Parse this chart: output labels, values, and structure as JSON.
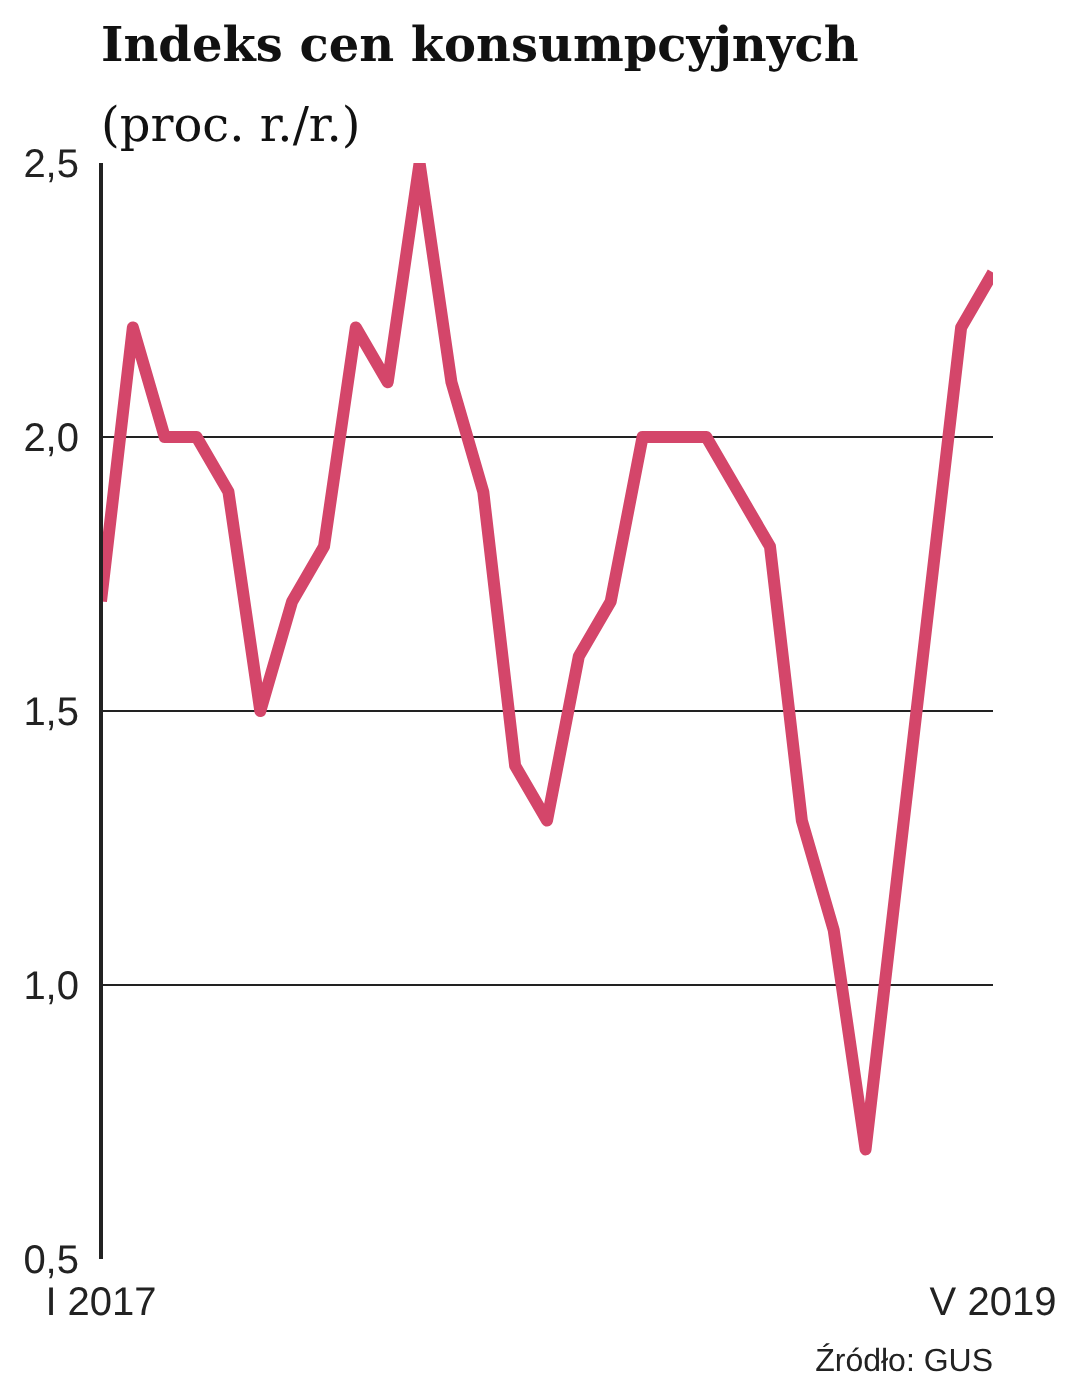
{
  "chart_data": {
    "type": "line",
    "title": "Indeks cen konsumpcyjnych",
    "subtitle": "(proc. r./r.)",
    "categories": [
      "I 2017",
      null,
      null,
      null,
      null,
      null,
      null,
      null,
      null,
      null,
      null,
      null,
      null,
      null,
      null,
      null,
      null,
      null,
      null,
      null,
      null,
      null,
      null,
      null,
      null,
      null,
      null,
      null,
      "V 2019"
    ],
    "series": [
      {
        "color": "#d4466a",
        "values": [
          1.7,
          2.2,
          2.0,
          2.0,
          1.9,
          1.5,
          1.7,
          1.8,
          2.2,
          2.1,
          2.5,
          2.1,
          1.9,
          1.4,
          1.3,
          1.6,
          1.7,
          2.0,
          2.0,
          2.0,
          1.9,
          1.8,
          1.3,
          1.1,
          0.7,
          1.2,
          1.7,
          2.2,
          2.3
        ]
      }
    ],
    "ylim": [
      0.5,
      2.5
    ],
    "yticks": [
      {
        "value": 0.5,
        "label": "0,5"
      },
      {
        "value": 1.0,
        "label": "1,0"
      },
      {
        "value": 1.5,
        "label": "1,5"
      },
      {
        "value": 2.0,
        "label": "2,0"
      },
      {
        "value": 2.5,
        "label": "2,5"
      }
    ],
    "grid": "y",
    "marker": "none",
    "line_style": "solid",
    "annotations": [
      "Źródło: GUS"
    ]
  }
}
